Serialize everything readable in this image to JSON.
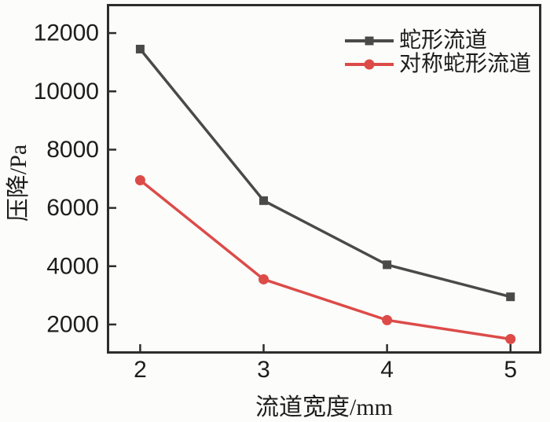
{
  "figure": {
    "background_color": "#fcfcfa",
    "axis_color": "#2d2d2b",
    "tick_label_color": "#1d1d1b"
  },
  "chart_data": {
    "type": "line",
    "title": "",
    "xlabel": "流道宽度/mm",
    "ylabel": "压降/Pa",
    "x": [
      2,
      3,
      4,
      5
    ],
    "xticks": [
      "2",
      "3",
      "4",
      "5"
    ],
    "yticks": [
      "2000",
      "4000",
      "6000",
      "8000",
      "10000",
      "12000"
    ],
    "xlim": [
      1.73,
      5.25
    ],
    "ylim": [
      1000,
      13000
    ],
    "grid": false,
    "legend_position": "top-right-inside",
    "series": [
      {
        "name": "蛇形流道",
        "color": "#4a4a48",
        "marker": "square",
        "values": [
          11450,
          6250,
          4050,
          2950
        ]
      },
      {
        "name": "对称蛇形流道",
        "color": "#dc4b48",
        "marker": "circle",
        "values": [
          6950,
          3550,
          2150,
          1500
        ]
      }
    ]
  }
}
